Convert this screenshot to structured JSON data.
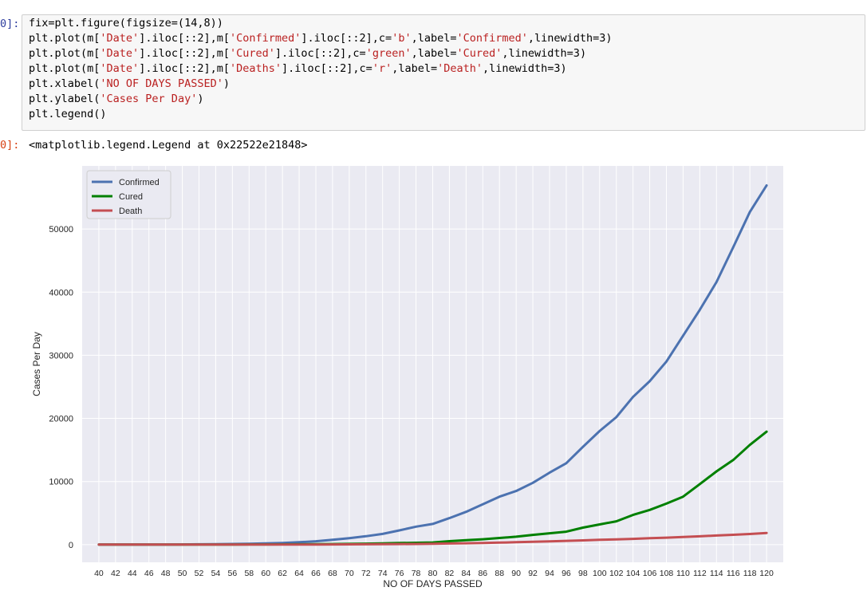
{
  "cell": {
    "in_prompt": "0]:",
    "out_prompt": "0]:",
    "output_text": "<matplotlib.legend.Legend at 0x22522e21848>",
    "code_lines": [
      [
        {
          "t": "fix=plt.figure(figsize=(14,8))",
          "c": "pun"
        }
      ],
      [
        {
          "t": "plt.plot(m[",
          "c": "pun"
        },
        {
          "t": "'Date'",
          "c": "str"
        },
        {
          "t": "].iloc[::2],m[",
          "c": "pun"
        },
        {
          "t": "'Confirmed'",
          "c": "str"
        },
        {
          "t": "].iloc[::2],c=",
          "c": "pun"
        },
        {
          "t": "'b'",
          "c": "str"
        },
        {
          "t": ",label=",
          "c": "pun"
        },
        {
          "t": "'Confirmed'",
          "c": "str"
        },
        {
          "t": ",linewidth=3)",
          "c": "pun"
        }
      ],
      [
        {
          "t": "plt.plot(m[",
          "c": "pun"
        },
        {
          "t": "'Date'",
          "c": "str"
        },
        {
          "t": "].iloc[::2],m[",
          "c": "pun"
        },
        {
          "t": "'Cured'",
          "c": "str"
        },
        {
          "t": "].iloc[::2],c=",
          "c": "pun"
        },
        {
          "t": "'green'",
          "c": "str"
        },
        {
          "t": ",label=",
          "c": "pun"
        },
        {
          "t": "'Cured'",
          "c": "str"
        },
        {
          "t": ",linewidth=3)",
          "c": "pun"
        }
      ],
      [
        {
          "t": "plt.plot(m[",
          "c": "pun"
        },
        {
          "t": "'Date'",
          "c": "str"
        },
        {
          "t": "].iloc[::2],m[",
          "c": "pun"
        },
        {
          "t": "'Deaths'",
          "c": "str"
        },
        {
          "t": "].iloc[::2],c=",
          "c": "pun"
        },
        {
          "t": "'r'",
          "c": "str"
        },
        {
          "t": ",label=",
          "c": "pun"
        },
        {
          "t": "'Death'",
          "c": "str"
        },
        {
          "t": ",linewidth=3)",
          "c": "pun"
        }
      ],
      [
        {
          "t": "plt.xlabel(",
          "c": "pun"
        },
        {
          "t": "'NO OF DAYS PASSED'",
          "c": "str"
        },
        {
          "t": ")",
          "c": "pun"
        }
      ],
      [
        {
          "t": "plt.ylabel(",
          "c": "pun"
        },
        {
          "t": "'Cases Per Day'",
          "c": "str"
        },
        {
          "t": ")",
          "c": "pun"
        }
      ],
      [
        {
          "t": "plt.legend()",
          "c": "pun"
        }
      ]
    ]
  },
  "chart_data": {
    "type": "line",
    "xlabel": "NO OF DAYS PASSED",
    "ylabel": "Cases Per Day",
    "xlim": [
      38,
      122
    ],
    "ylim": [
      -2800,
      60000
    ],
    "x_ticks": [
      40,
      42,
      44,
      46,
      48,
      50,
      52,
      54,
      56,
      58,
      60,
      62,
      64,
      66,
      68,
      70,
      72,
      74,
      76,
      78,
      80,
      82,
      84,
      86,
      88,
      90,
      92,
      94,
      96,
      98,
      100,
      102,
      104,
      106,
      108,
      110,
      112,
      114,
      116,
      118,
      120
    ],
    "y_ticks": [
      0,
      10000,
      20000,
      30000,
      40000,
      50000
    ],
    "grid": true,
    "legend_position": "top-left",
    "x": [
      40,
      42,
      44,
      46,
      48,
      50,
      52,
      54,
      56,
      58,
      60,
      62,
      64,
      66,
      68,
      70,
      72,
      74,
      76,
      78,
      80,
      82,
      84,
      86,
      88,
      90,
      92,
      94,
      96,
      98,
      100,
      102,
      104,
      106,
      108,
      110,
      112,
      114,
      116,
      118,
      120
    ],
    "series": [
      {
        "name": "Confirmed",
        "color": "#4c72b0",
        "values": [
          3,
          5,
          8,
          12,
          20,
          30,
          50,
          75,
          105,
          150,
          200,
          270,
          380,
          540,
          780,
          1030,
          1330,
          1700,
          2250,
          2850,
          3280,
          4200,
          5200,
          6400,
          7600,
          8500,
          9800,
          11400,
          12900,
          15500,
          18000,
          20200,
          23400,
          25900,
          29000,
          33100,
          37200,
          41600,
          47100,
          52700,
          56900
        ]
      },
      {
        "name": "Cured",
        "color": "#008000",
        "values": [
          0,
          0,
          1,
          2,
          3,
          5,
          8,
          12,
          18,
          25,
          35,
          45,
          60,
          75,
          95,
          120,
          160,
          210,
          260,
          300,
          350,
          550,
          700,
          850,
          1050,
          1250,
          1550,
          1800,
          2050,
          2700,
          3200,
          3700,
          4700,
          5500,
          6500,
          7600,
          9600,
          11600,
          13400,
          15800,
          17900
        ]
      },
      {
        "name": "Death",
        "color": "#c44e52",
        "values": [
          0,
          0,
          0,
          0,
          1,
          1,
          2,
          3,
          4,
          6,
          9,
          12,
          17,
          22,
          30,
          40,
          55,
          70,
          90,
          110,
          140,
          180,
          220,
          270,
          320,
          380,
          450,
          520,
          600,
          680,
          760,
          840,
          920,
          1010,
          1110,
          1210,
          1320,
          1440,
          1560,
          1680,
          1850
        ]
      }
    ]
  }
}
